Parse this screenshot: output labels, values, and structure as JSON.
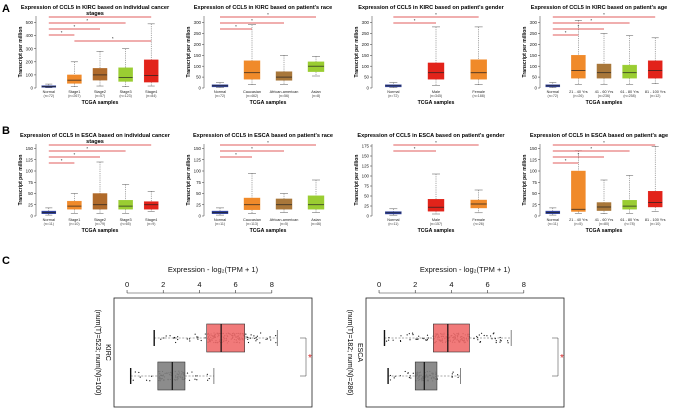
{
  "colors": {
    "normal": "#2b3d9b",
    "stage1": "#f08a2a",
    "stage2": "#b06a2a",
    "stage3": "#9acd32",
    "stage4": "#e2231a",
    "caucasian": "#f08a2a",
    "african": "#a8773a",
    "asian": "#9acd32",
    "male": "#e2231a",
    "female": "#f08a2a",
    "age21": "#f08a2a",
    "age41": "#a8773a",
    "age61": "#9acd32",
    "age81": "#e2231a",
    "sig": "#d62728",
    "tumorBox": "#f06b6b",
    "normalBox": "#7f7f7f"
  },
  "panel_labels": {
    "a": "A",
    "b": "B",
    "c": "C"
  },
  "charts": [
    {
      "id": "a1",
      "title": "Expression of CCL5 in KIRC based on individual cancer stages",
      "xlabel": "TCGA samples",
      "ylabel": "Transcript per million",
      "ylim": [
        0,
        550
      ],
      "yticks": [
        0,
        100,
        200,
        300,
        400,
        500
      ],
      "categories": [
        {
          "label": "Normal",
          "n": "(n=72)",
          "color": "normal",
          "q": [
            2,
            5,
            10,
            18,
            30
          ]
        },
        {
          "label": "Stage1",
          "n": "(n=267)",
          "color": "stage1",
          "q": [
            10,
            35,
            60,
            100,
            200
          ]
        },
        {
          "label": "Stage2",
          "n": "(n=57)",
          "color": "stage2",
          "q": [
            15,
            60,
            100,
            150,
            280
          ]
        },
        {
          "label": "Stage3",
          "n": "(n=123)",
          "color": "stage3",
          "q": [
            10,
            50,
            80,
            155,
            300
          ]
        },
        {
          "label": "Stage4",
          "n": "(n=84)",
          "color": "stage4",
          "q": [
            15,
            45,
            95,
            215,
            490
          ]
        }
      ],
      "sig": [
        [
          0,
          4
        ],
        [
          0,
          3
        ],
        [
          0,
          2
        ],
        [
          0,
          1
        ],
        [
          1,
          4
        ]
      ]
    },
    {
      "id": "a2",
      "title": "Expression of CCL5 in KIRC based on patient's race",
      "xlabel": "TCGA samples",
      "ylabel": "Transcript per million",
      "ylim": [
        0,
        330
      ],
      "yticks": [
        0,
        50,
        100,
        150,
        200,
        250,
        300
      ],
      "categories": [
        {
          "label": "Normal",
          "n": "(n=72)",
          "color": "normal",
          "q": [
            2,
            5,
            10,
            15,
            25
          ]
        },
        {
          "label": "Caucasian",
          "n": "(n=462)",
          "color": "caucasian",
          "q": [
            15,
            40,
            70,
            125,
            290
          ]
        },
        {
          "label": "African-american",
          "n": "(n=56)",
          "color": "african",
          "q": [
            15,
            35,
            50,
            75,
            150
          ]
        },
        {
          "label": "Asian",
          "n": "(n=8)",
          "color": "asian",
          "q": [
            55,
            75,
            100,
            120,
            145
          ]
        }
      ],
      "sig": [
        [
          0,
          3
        ],
        [
          0,
          2
        ],
        [
          0,
          1
        ]
      ]
    },
    {
      "id": "a3",
      "title": "Expression of CCL5 in KIRC based on patient's gender",
      "xlabel": "TCGA samples",
      "ylabel": "Transcript per million",
      "ylim": [
        0,
        330
      ],
      "yticks": [
        0,
        50,
        100,
        150,
        200,
        250,
        300
      ],
      "categories": [
        {
          "label": "Normal",
          "n": "(n=72)",
          "color": "normal",
          "q": [
            2,
            5,
            10,
            15,
            25
          ]
        },
        {
          "label": "Male",
          "n": "(n=345)",
          "color": "male",
          "q": [
            12,
            40,
            70,
            115,
            280
          ]
        },
        {
          "label": "Female",
          "n": "(n=188)",
          "color": "female",
          "q": [
            15,
            40,
            70,
            130,
            280
          ]
        }
      ],
      "sig": [
        [
          0,
          2
        ],
        [
          0,
          1
        ]
      ]
    },
    {
      "id": "a4",
      "title": "Expression of CCL5 in KIRC based on patient's age",
      "xlabel": "TCGA samples",
      "ylabel": "Transcript per million",
      "ylim": [
        0,
        330
      ],
      "yticks": [
        0,
        50,
        100,
        150,
        200,
        250,
        300
      ],
      "categories": [
        {
          "label": "Normal",
          "n": "(n=72)",
          "color": "normal",
          "q": [
            2,
            5,
            10,
            15,
            25
          ]
        },
        {
          "label": "21 - 40 Yrs",
          "n": "(n=26)",
          "color": "age21",
          "q": [
            15,
            45,
            80,
            150,
            310
          ]
        },
        {
          "label": "41 - 60 Yrs",
          "n": "(n=236)",
          "color": "age41",
          "q": [
            15,
            45,
            70,
            110,
            250
          ]
        },
        {
          "label": "61 - 80 Yrs",
          "n": "(n=258)",
          "color": "age61",
          "q": [
            15,
            45,
            70,
            105,
            240
          ]
        },
        {
          "label": "81 - 100 Yrs",
          "n": "(n=12)",
          "color": "age81",
          "q": [
            20,
            45,
            80,
            125,
            230
          ]
        }
      ],
      "sig": [
        [
          0,
          4
        ],
        [
          0,
          3
        ],
        [
          0,
          2
        ],
        [
          0,
          1
        ]
      ]
    },
    {
      "id": "b1",
      "title": "Expression of CCL5 in ESCA based on individual cancer stages",
      "xlabel": "TCGA samples",
      "ylabel": "Transcript per million",
      "ylim": [
        0,
        160
      ],
      "yticks": [
        0,
        25,
        50,
        75,
        100,
        125,
        150
      ],
      "categories": [
        {
          "label": "Normal",
          "n": "(n=11)",
          "color": "normal",
          "q": [
            2,
            5,
            8,
            11,
            18
          ]
        },
        {
          "label": "Stage1",
          "n": "(n=10)",
          "color": "stage1",
          "q": [
            5,
            15,
            22,
            33,
            50
          ]
        },
        {
          "label": "Stage2",
          "n": "(n=79)",
          "color": "stage2",
          "q": [
            5,
            15,
            25,
            50,
            120
          ]
        },
        {
          "label": "Stage3",
          "n": "(n=65)",
          "color": "stage3",
          "q": [
            5,
            15,
            22,
            35,
            70
          ]
        },
        {
          "label": "Stage4",
          "n": "(n=9)",
          "color": "stage4",
          "q": [
            10,
            15,
            25,
            32,
            55
          ]
        }
      ],
      "sig": [
        [
          0,
          4
        ],
        [
          0,
          3
        ],
        [
          0,
          2
        ],
        [
          0,
          1
        ]
      ]
    },
    {
      "id": "b2",
      "title": "Expression of CCL5 in ESCA based on patient's race",
      "xlabel": "TCGA samples",
      "ylabel": "Transcript per million",
      "ylim": [
        0,
        160
      ],
      "yticks": [
        0,
        25,
        50,
        75,
        100,
        125,
        150
      ],
      "categories": [
        {
          "label": "Normal",
          "n": "(n=11)",
          "color": "normal",
          "q": [
            2,
            5,
            8,
            11,
            18
          ]
        },
        {
          "label": "Caucasian",
          "n": "(n=113)",
          "color": "caucasian",
          "q": [
            5,
            14,
            25,
            40,
            95
          ]
        },
        {
          "label": "African-american",
          "n": "(n=5)",
          "color": "african",
          "q": [
            8,
            15,
            25,
            38,
            50
          ]
        },
        {
          "label": "Asian",
          "n": "(n=46)",
          "color": "asian",
          "q": [
            8,
            15,
            25,
            45,
            80
          ]
        }
      ],
      "sig": [
        [
          0,
          3
        ],
        [
          0,
          2
        ],
        [
          0,
          1
        ]
      ]
    },
    {
      "id": "b3",
      "title": "Expression of CCL5 in ESCA based on patient's gender",
      "xlabel": "TCGA samples",
      "ylabel": "Transcript per million",
      "ylim": [
        0,
        180
      ],
      "yticks": [
        0,
        25,
        50,
        75,
        100,
        125,
        150,
        175
      ],
      "categories": [
        {
          "label": "Normal",
          "n": "(n=11)",
          "color": "normal",
          "q": [
            2,
            5,
            8,
            11,
            18
          ]
        },
        {
          "label": "Male",
          "n": "(n=157)",
          "color": "male",
          "q": [
            5,
            12,
            22,
            42,
            105
          ]
        },
        {
          "label": "Female",
          "n": "(n=26)",
          "color": "female",
          "q": [
            8,
            20,
            30,
            40,
            65
          ]
        }
      ],
      "sig": [
        [
          0,
          2
        ],
        [
          0,
          1
        ]
      ]
    },
    {
      "id": "b4",
      "title": "Expression of CCL5 in ESCA based on patient's age",
      "xlabel": "TCGA samples",
      "ylabel": "Transcript per million",
      "ylim": [
        0,
        160
      ],
      "yticks": [
        0,
        25,
        50,
        75,
        100,
        125,
        150
      ],
      "categories": [
        {
          "label": "Normal",
          "n": "(n=11)",
          "color": "normal",
          "q": [
            2,
            5,
            8,
            11,
            18
          ]
        },
        {
          "label": "21 - 40 Yrs",
          "n": "(n=5)",
          "color": "age21",
          "q": [
            5,
            10,
            15,
            100,
            145
          ]
        },
        {
          "label": "41 - 60 Yrs",
          "n": "(n=80)",
          "color": "age41",
          "q": [
            5,
            12,
            20,
            30,
            80
          ]
        },
        {
          "label": "61 - 80 Yrs",
          "n": "(n=78)",
          "color": "age61",
          "q": [
            5,
            15,
            22,
            35,
            90
          ]
        },
        {
          "label": "81 - 100 Yrs",
          "n": "(n=10)",
          "color": "age81",
          "q": [
            10,
            20,
            30,
            55,
            155
          ]
        }
      ],
      "sig": [
        [
          0,
          4
        ],
        [
          0,
          3
        ],
        [
          0,
          2
        ],
        [
          0,
          1
        ]
      ]
    }
  ],
  "gepia": [
    {
      "id": "c1",
      "xlabel": "Expression - log₂(TPM + 1)",
      "xticks": [
        0,
        2,
        4,
        6,
        8
      ],
      "xlim": [
        -0.5,
        10
      ],
      "ylabel": "(num(T)=523; num(N)=100)",
      "group_label": "KIRC",
      "tumor": {
        "q": [
          1.5,
          4.4,
          5.2,
          6.5,
          8.3
        ]
      },
      "normal": {
        "q": [
          0.2,
          1.7,
          2.5,
          3.2,
          4.8
        ]
      },
      "sig": "*"
    },
    {
      "id": "c2",
      "xlabel": "Expression - log₂(TPM + 1)",
      "xticks": [
        0,
        2,
        4,
        6,
        8
      ],
      "xlim": [
        -0.5,
        10
      ],
      "ylabel": "(num(T)=182; num(N)=286)",
      "group_label": "ESCA",
      "tumor": {
        "q": [
          0.3,
          3.0,
          3.8,
          5.0,
          7.3
        ]
      },
      "normal": {
        "q": [
          0.5,
          2.0,
          2.5,
          3.2,
          4.5
        ]
      },
      "sig": "*"
    }
  ]
}
